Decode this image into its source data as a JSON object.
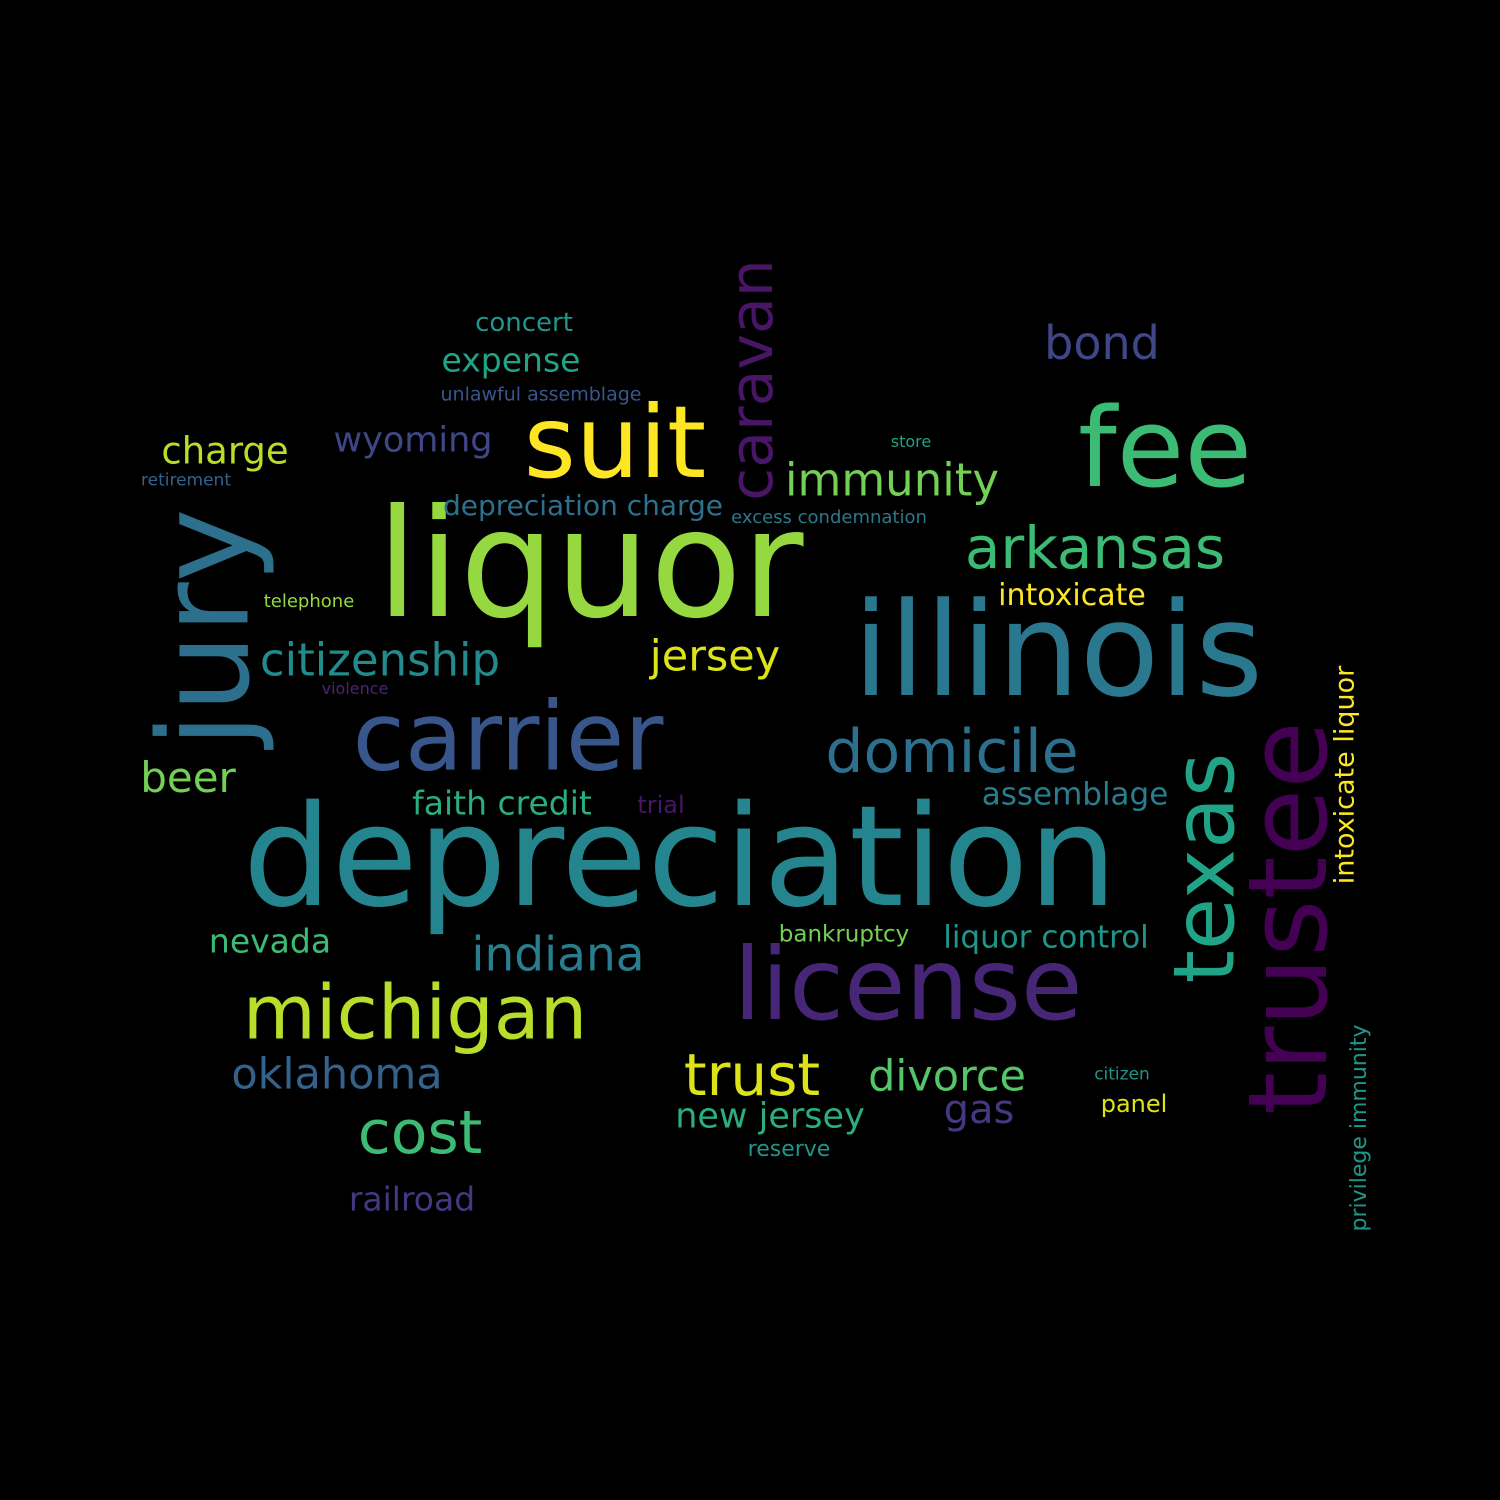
{
  "words": [
    {
      "text": "depreciation",
      "color": "#25858e",
      "vertical": false
    },
    {
      "text": "liquor",
      "color": "#95d840",
      "vertical": false
    },
    {
      "text": "illinois",
      "color": "#2a788e",
      "vertical": false
    },
    {
      "text": "license",
      "color": "#482677",
      "vertical": false
    },
    {
      "text": "fee",
      "color": "#3cbb75",
      "vertical": false
    },
    {
      "text": "suit",
      "color": "#fde725",
      "vertical": false
    },
    {
      "text": "carrier",
      "color": "#39568c",
      "vertical": false
    },
    {
      "text": "jury",
      "color": "#2d708e",
      "vertical": true
    },
    {
      "text": "trustee",
      "color": "#440154",
      "vertical": true
    },
    {
      "text": "texas",
      "color": "#20a386",
      "vertical": true
    },
    {
      "text": "michigan",
      "color": "#b8de29",
      "vertical": false
    },
    {
      "text": "caravan",
      "color": "#481567",
      "vertical": true
    },
    {
      "text": "domicile",
      "color": "#2d708e",
      "vertical": false
    },
    {
      "text": "arkansas",
      "color": "#3cbb75",
      "vertical": false
    },
    {
      "text": "trust",
      "color": "#dce319",
      "vertical": false
    },
    {
      "text": "cost",
      "color": "#3cbb75",
      "vertical": false
    },
    {
      "text": "immunity",
      "color": "#73d055",
      "vertical": false
    },
    {
      "text": "citizenship",
      "color": "#238a8d",
      "vertical": false
    },
    {
      "text": "bond",
      "color": "#404788",
      "vertical": false
    },
    {
      "text": "indiana",
      "color": "#287d8e",
      "vertical": false
    },
    {
      "text": "oklahoma",
      "color": "#33638d",
      "vertical": false
    },
    {
      "text": "divorce",
      "color": "#55c667",
      "vertical": false
    },
    {
      "text": "jersey",
      "color": "#dce319",
      "vertical": false
    },
    {
      "text": "beer",
      "color": "#73d055",
      "vertical": false
    },
    {
      "text": "charge",
      "color": "#b8de29",
      "vertical": false
    },
    {
      "text": "gas",
      "color": "#453781",
      "vertical": false
    },
    {
      "text": "new jersey",
      "color": "#29af7f",
      "vertical": false
    },
    {
      "text": "wyoming",
      "color": "#404788",
      "vertical": false
    },
    {
      "text": "expense",
      "color": "#20a386",
      "vertical": false
    },
    {
      "text": "nevada",
      "color": "#3cbb75",
      "vertical": false
    },
    {
      "text": "faith credit",
      "color": "#29af7f",
      "vertical": false
    },
    {
      "text": "railroad",
      "color": "#453781",
      "vertical": false
    },
    {
      "text": "intoxicate liquor",
      "color": "#fde725",
      "vertical": true
    },
    {
      "text": "liquor control",
      "color": "#1f968b",
      "vertical": false
    },
    {
      "text": "assemblage",
      "color": "#287d8e",
      "vertical": false
    },
    {
      "text": "intoxicate",
      "color": "#fde725",
      "vertical": false
    },
    {
      "text": "depreciation charge",
      "color": "#2d708e",
      "vertical": false
    },
    {
      "text": "concert",
      "color": "#1f968b",
      "vertical": false
    },
    {
      "text": "privilege immunity",
      "color": "#1f968b",
      "vertical": true
    },
    {
      "text": "bankruptcy",
      "color": "#73d055",
      "vertical": false
    },
    {
      "text": "reserve",
      "color": "#1f968b",
      "vertical": false
    },
    {
      "text": "panel",
      "color": "#dce319",
      "vertical": false
    },
    {
      "text": "trial",
      "color": "#481567",
      "vertical": false
    },
    {
      "text": "unlawful assemblage",
      "color": "#39568c",
      "vertical": false
    },
    {
      "text": "excess condemnation",
      "color": "#2a788e",
      "vertical": false
    },
    {
      "text": "telephone",
      "color": "#95d840",
      "vertical": false
    },
    {
      "text": "retirement",
      "color": "#33638d",
      "vertical": false
    },
    {
      "text": "violence",
      "color": "#482677",
      "vertical": false
    },
    {
      "text": "store",
      "color": "#20a386",
      "vertical": false
    },
    {
      "text": "citizen",
      "color": "#1f968b",
      "vertical": false
    }
  ]
}
